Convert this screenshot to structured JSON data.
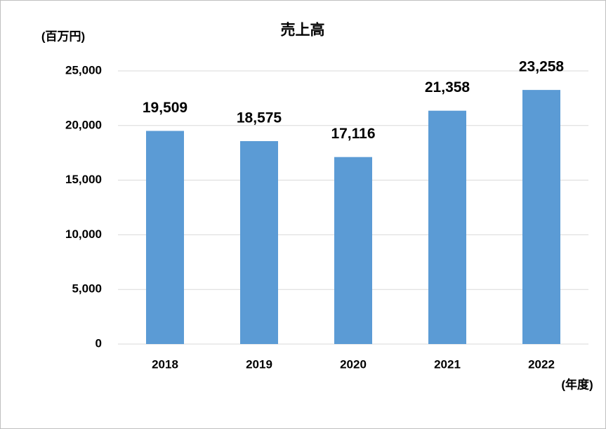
{
  "chart_data": {
    "type": "bar",
    "title": "売上高",
    "y_label": "(百万円)",
    "x_label": "(年度)",
    "categories": [
      "2018",
      "2019",
      "2020",
      "2021",
      "2022"
    ],
    "values": [
      19509,
      18575,
      17116,
      21358,
      23258
    ],
    "value_labels": [
      "19,509",
      "18,575",
      "17,116",
      "21,358",
      "23,258"
    ],
    "color": "#5b9bd5",
    "ylim": [
      0,
      25000
    ],
    "yticks": [
      0,
      {
        "value": 5000,
        "label": "5,000"
      },
      {
        "value": 10000,
        "label": "10,000"
      },
      {
        "value": 15000,
        "label": "15,000"
      },
      {
        "value": 20000,
        "label": "20,000"
      },
      {
        "value": 25000,
        "label": "25,000"
      }
    ],
    "grid": true
  }
}
